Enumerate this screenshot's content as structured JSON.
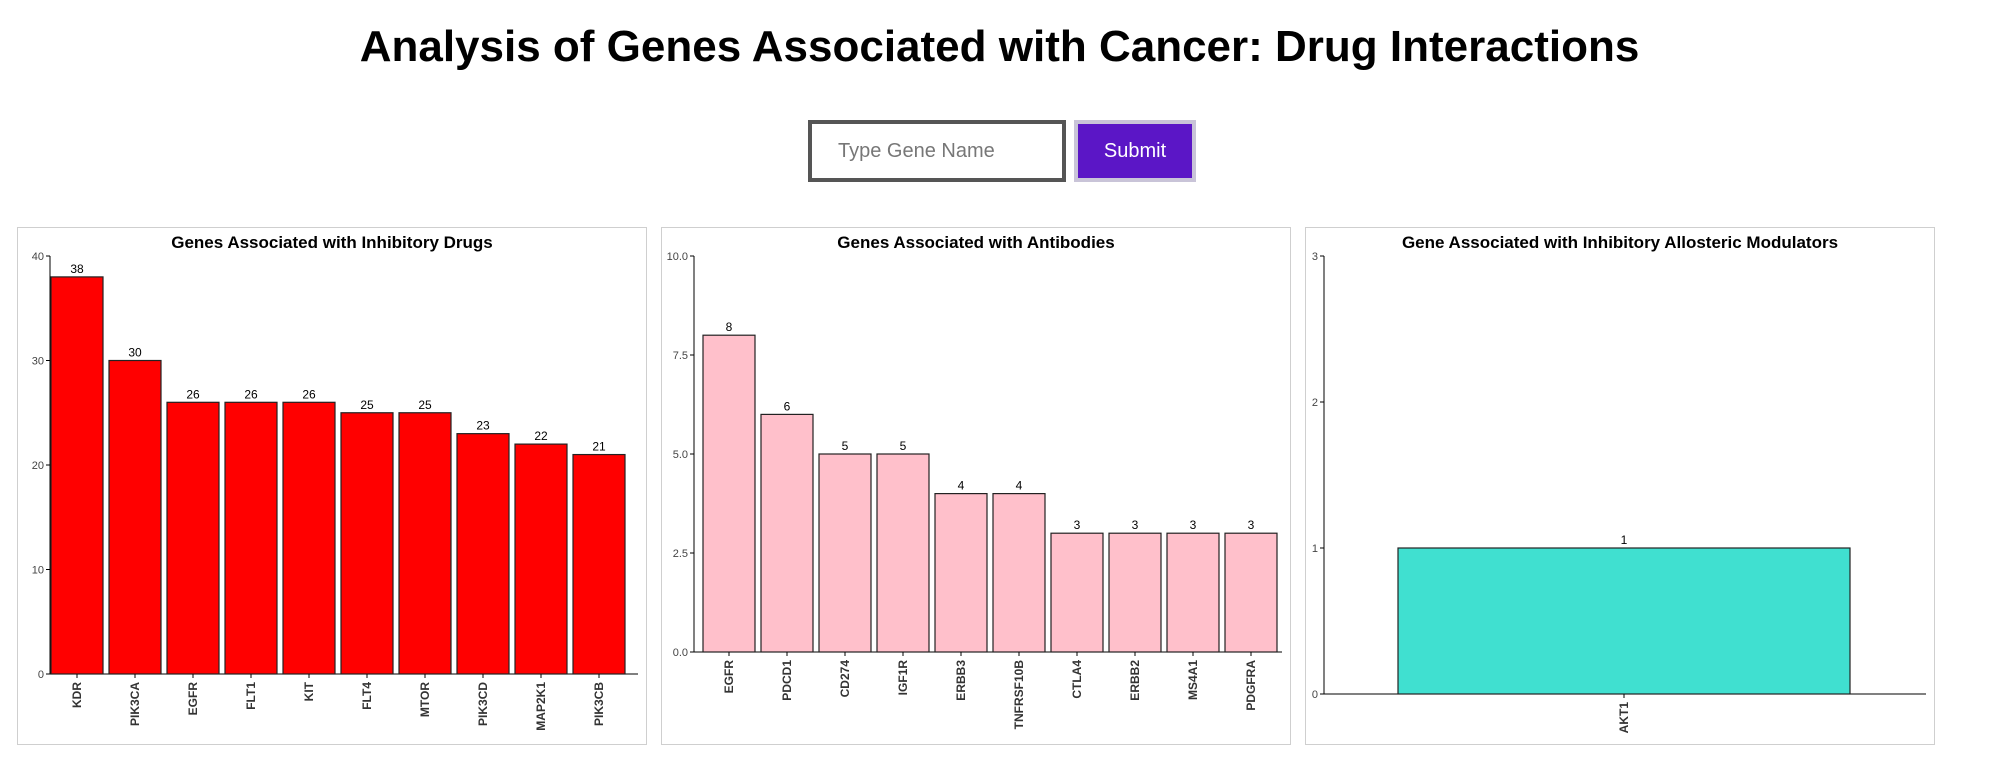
{
  "page": {
    "title": "Analysis of Genes Associated with Cancer: Drug Interactions"
  },
  "search": {
    "placeholder": "Type Gene Name",
    "value": "",
    "submit_label": "Submit"
  },
  "chart_data": [
    {
      "type": "bar",
      "title": "Genes Associated with Inhibitory Drugs",
      "xlabel": "",
      "ylabel": "",
      "categories": [
        "KDR",
        "PIK3CA",
        "EGFR",
        "FLT1",
        "KIT",
        "FLT4",
        "MTOR",
        "PIK3CD",
        "MAP2K1",
        "PIK3CB"
      ],
      "values": [
        38,
        30,
        26,
        26,
        26,
        25,
        25,
        23,
        22,
        21
      ],
      "ylim": [
        0,
        40
      ],
      "yticks": [
        0,
        10,
        20,
        30,
        40
      ],
      "ytick_labels": [
        "0",
        "10",
        "20",
        "30",
        "40"
      ],
      "color": "#ff0000",
      "grid": false,
      "legend": "none"
    },
    {
      "type": "bar",
      "title": "Genes Associated with Antibodies",
      "xlabel": "",
      "ylabel": "",
      "categories": [
        "EGFR",
        "PDCD1",
        "CD274",
        "IGF1R",
        "ERBB3",
        "TNFRSF10B",
        "CTLA4",
        "ERBB2",
        "MS4A1",
        "PDGFRA"
      ],
      "values": [
        8,
        6,
        5,
        5,
        4,
        4,
        3,
        3,
        3,
        3
      ],
      "ylim": [
        0,
        10
      ],
      "yticks": [
        0,
        2.5,
        5,
        7.5,
        10
      ],
      "ytick_labels": [
        "0.0",
        "2.5",
        "5.0",
        "7.5",
        "10.0"
      ],
      "color": "#ffc0cb",
      "grid": false,
      "legend": "none"
    },
    {
      "type": "bar",
      "title": "Gene Associated with Inhibitory Allosteric Modulators",
      "xlabel": "",
      "ylabel": "",
      "categories": [
        "AKT1"
      ],
      "values": [
        1
      ],
      "ylim": [
        0,
        3
      ],
      "yticks": [
        0,
        1,
        2,
        3
      ],
      "ytick_labels": [
        "0",
        "1",
        "2",
        "3"
      ],
      "color": "#40e0d0",
      "grid": false,
      "legend": "none"
    }
  ]
}
